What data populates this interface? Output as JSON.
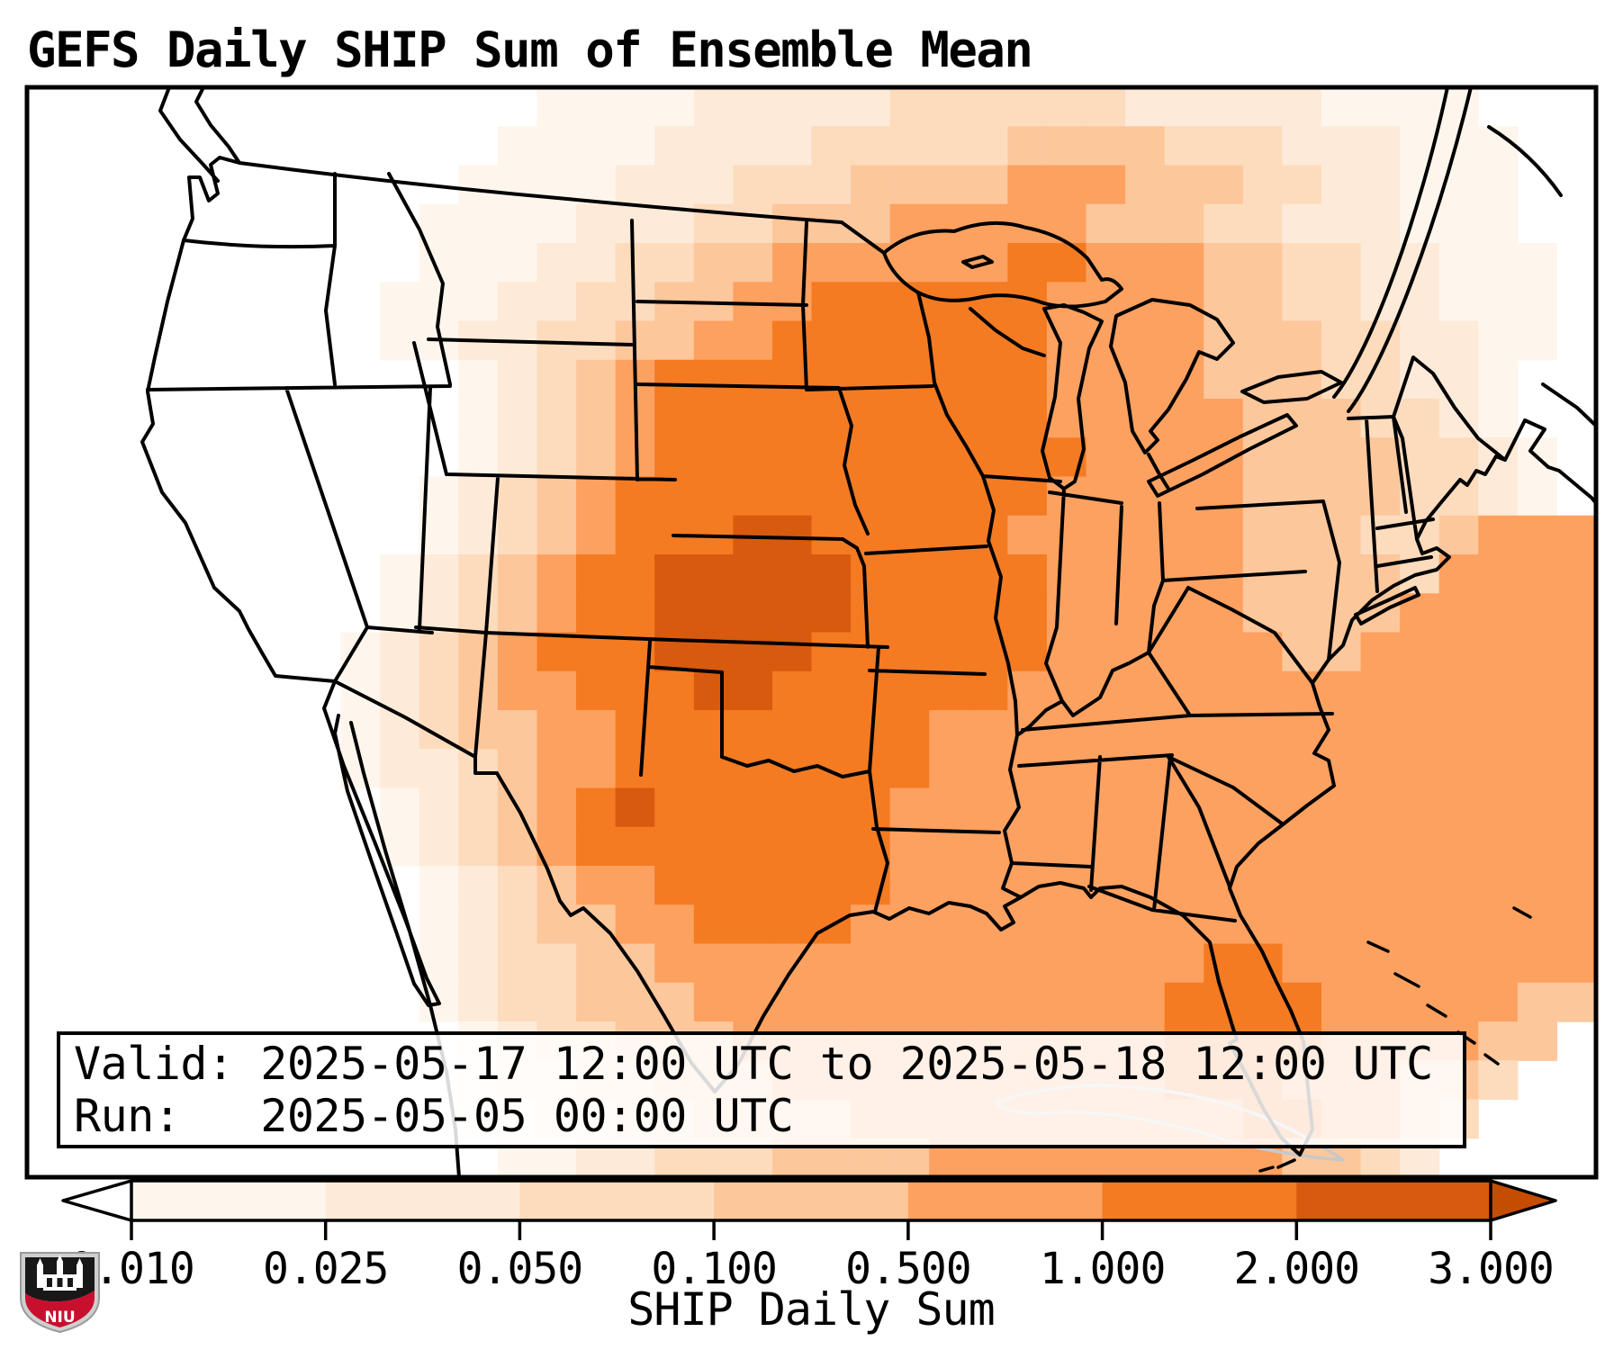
{
  "title": "GEFS Daily SHIP Sum of Ensemble Mean",
  "info_box": {
    "line1": "Valid: 2025-05-17 12:00 UTC to 2025-05-18 12:00 UTC",
    "line2": "Run:   2025-05-05 00:00 UTC"
  },
  "colorbar": {
    "label": "SHIP Daily Sum",
    "ticks": [
      "0.010",
      "0.025",
      "0.050",
      "0.100",
      "0.500",
      "1.000",
      "2.000",
      "3.000"
    ],
    "segment_colors": [
      "#fef6ec",
      "#fdead8",
      "#fddcbe",
      "#fdc79c",
      "#fda160",
      "#f47b22",
      "#d85a0e"
    ],
    "under_color": "#ffffff",
    "over_color": "#c54d02"
  },
  "logo": {
    "text": "NIU",
    "red": "#c8102e",
    "black": "#181818"
  },
  "chart_data": {
    "type": "heatmap",
    "title": "GEFS Daily SHIP Sum of Ensemble Mean",
    "variable": "SHIP Daily Sum",
    "valid": "2025-05-17 12:00 UTC to 2025-05-18 12:00 UTC",
    "run": "2025-05-05 00:00 UTC",
    "region": "CONUS / North America (Lambert conformal style map)",
    "colormap": "Oranges, discrete levels with under=white and over=dark-orange arrows",
    "levels": [
      0.01,
      0.025,
      0.05,
      0.1,
      0.5,
      1.0,
      2.0,
      3.0
    ],
    "palette": [
      "#ffffff",
      "#fef6ec",
      "#fdead8",
      "#fddcbe",
      "#fdc79c",
      "#fda160",
      "#f47b22",
      "#d85a0e"
    ],
    "under_color": "#ffffff",
    "over_color": "#c54d02",
    "legend_position": "bottom",
    "grid_note": "Approximate SHIP daily-sum level index per cell (0 = <0.010 white, 1 = 0.010-0.025, 2 = 0.025-0.050, 3 = 0.050-0.100, 4 = 0.100-0.500, 5 = 0.500-1.000, 6 = 1.000-2.000, 7 = 2.000-3.000). 40 columns x 28 rows spanning the map frame; maximum over Oklahoma / southern Plains.",
    "grid": [
      "0000000000000111122222333333222221111000",
      "0000000000001111222233333444433322211100",
      "0000000000011112223334444555444332211100",
      "0000000000111122233444555554443322211100",
      "0000000000111223344555555665554433221110",
      "0000000001112233445566666655554433221110",
      "0000000001122334455666666655554443322110",
      "0000000000012345666666666655554443322100",
      "0000000000012345666666666655555444332100",
      "0000000000012345666666666665555444433210",
      "0000000000123456666666666655555444433210",
      "0000000000123456667766666555555444334555",
      "0000000001234566777776666655555444435555",
      "0000000001234566777776666655555444455555",
      "0000000012345666777766666655555544555555",
      "0000000012345566677666666555555555555555",
      "0000000012344556666666655555555555555555",
      "0000000012234556666666655555555555555555",
      "0000000001234567666666555555555555555555",
      "0000000001234566666666555555555555555555",
      "0000000000123455666666555555555555555555",
      "0000000000123445566665555555555555555555",
      "0000000000123344555555555555556655555555",
      "0000000000123344455555555555566665555544",
      "0000000000012334445555555555566665555440",
      "0000000000012233444555555555566655544300",
      "0000000000011223344445555555555665543000",
      "0000000000001122333444455555555544320000"
    ]
  }
}
